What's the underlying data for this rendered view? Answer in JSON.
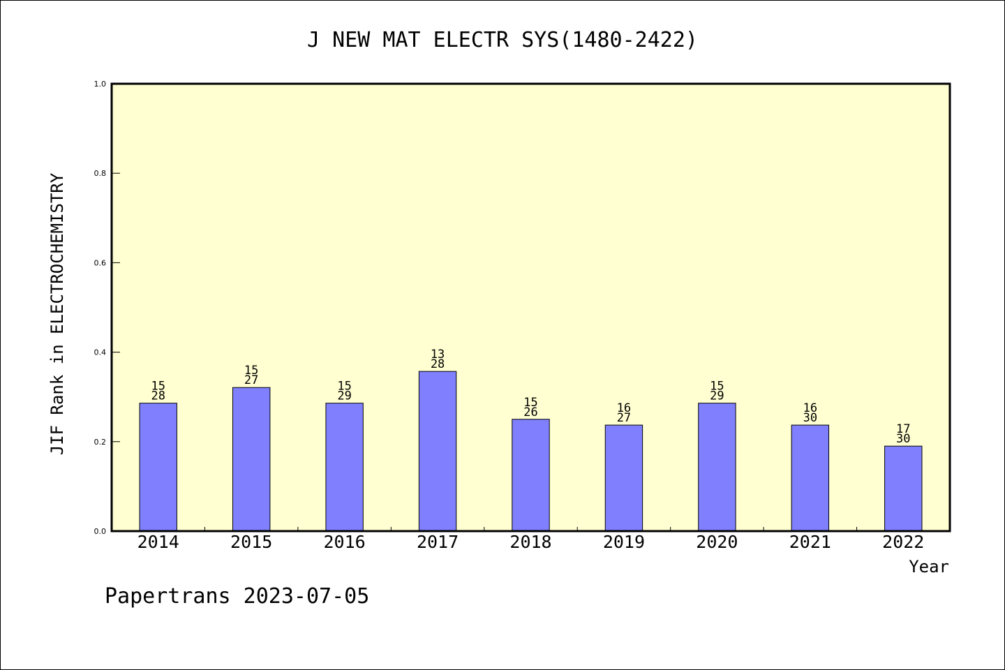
{
  "chart_data": {
    "type": "bar",
    "title": "J NEW MAT ELECTR SYS(1480-2422)",
    "xlabel": "Year",
    "ylabel": "JIF Rank in ELECTROCHEMISTRY",
    "categories": [
      "2014",
      "2015",
      "2016",
      "2017",
      "2018",
      "2019",
      "2020",
      "2021",
      "2022"
    ],
    "values": [
      0.286,
      0.321,
      0.286,
      0.357,
      0.25,
      0.237,
      0.286,
      0.237,
      0.19
    ],
    "rank_labels": [
      {
        "top": "15",
        "bottom": "28"
      },
      {
        "top": "15",
        "bottom": "27"
      },
      {
        "top": "15",
        "bottom": "29"
      },
      {
        "top": "13",
        "bottom": "28"
      },
      {
        "top": "15",
        "bottom": "26"
      },
      {
        "top": "16",
        "bottom": "27"
      },
      {
        "top": "15",
        "bottom": "29"
      },
      {
        "top": "16",
        "bottom": "30"
      },
      {
        "top": "17",
        "bottom": "30"
      }
    ],
    "ylim": [
      0,
      1.0
    ],
    "yticks": [
      "0.0",
      "0.2",
      "0.4",
      "0.6",
      "0.8",
      "1.0"
    ],
    "grid": false,
    "legend": "none",
    "colors": {
      "plot_background": "#ffffd2",
      "bar_fill": "#8080ff",
      "bar_stroke": "#000000"
    }
  },
  "footer": {
    "text": "Papertrans 2023-07-05"
  }
}
